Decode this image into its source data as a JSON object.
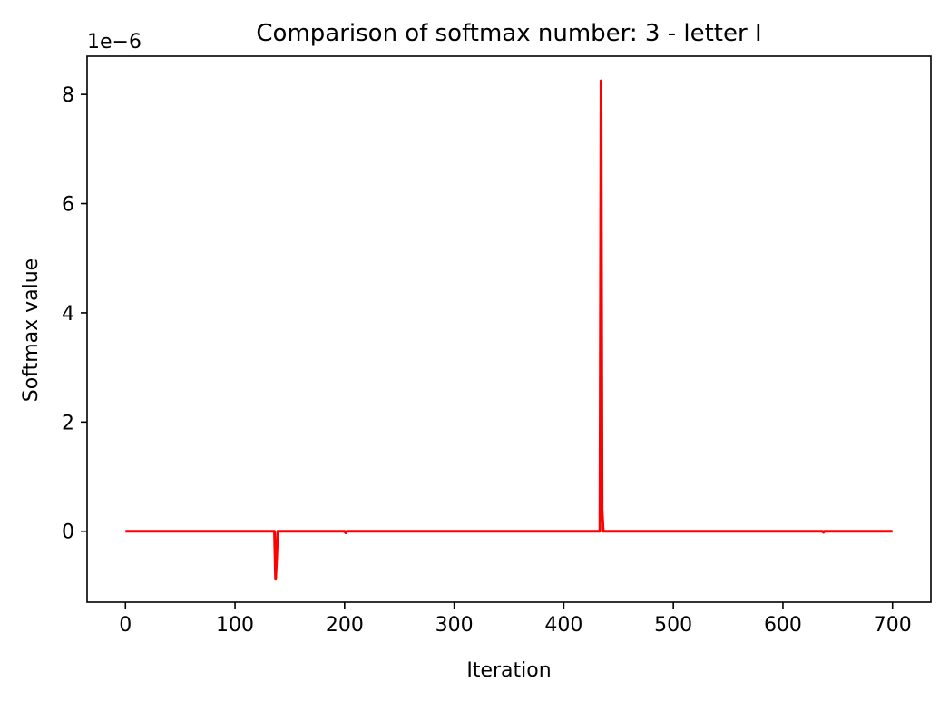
{
  "chart_data": {
    "type": "line",
    "title": "Comparison of softmax number: 3 - letter I",
    "xlabel": "Iteration",
    "ylabel": "Softmax value",
    "y_offset_label": "1e−6",
    "y_scale_factor": 1e-06,
    "xlim": [
      -35,
      735
    ],
    "ylim": [
      -1.3,
      8.7
    ],
    "xticks": [
      0,
      100,
      200,
      300,
      400,
      500,
      600,
      700
    ],
    "xtick_labels": [
      "0",
      "100",
      "200",
      "300",
      "400",
      "500",
      "600",
      "700"
    ],
    "yticks": [
      0,
      2,
      4,
      6,
      8
    ],
    "ytick_labels": [
      "0",
      "2",
      "4",
      "6",
      "8"
    ],
    "grid": false,
    "series": [
      {
        "color": "#ff0000",
        "x": [
          0,
          136,
          137,
          138,
          139,
          200,
          201,
          202,
          433,
          434,
          435,
          436,
          437,
          636,
          637,
          638,
          700
        ],
        "y": [
          0,
          0,
          -0.88,
          -0.5,
          0,
          0,
          -0.03,
          0,
          0,
          8.25,
          0.4,
          0,
          0,
          0,
          -0.02,
          0,
          0
        ]
      }
    ]
  }
}
